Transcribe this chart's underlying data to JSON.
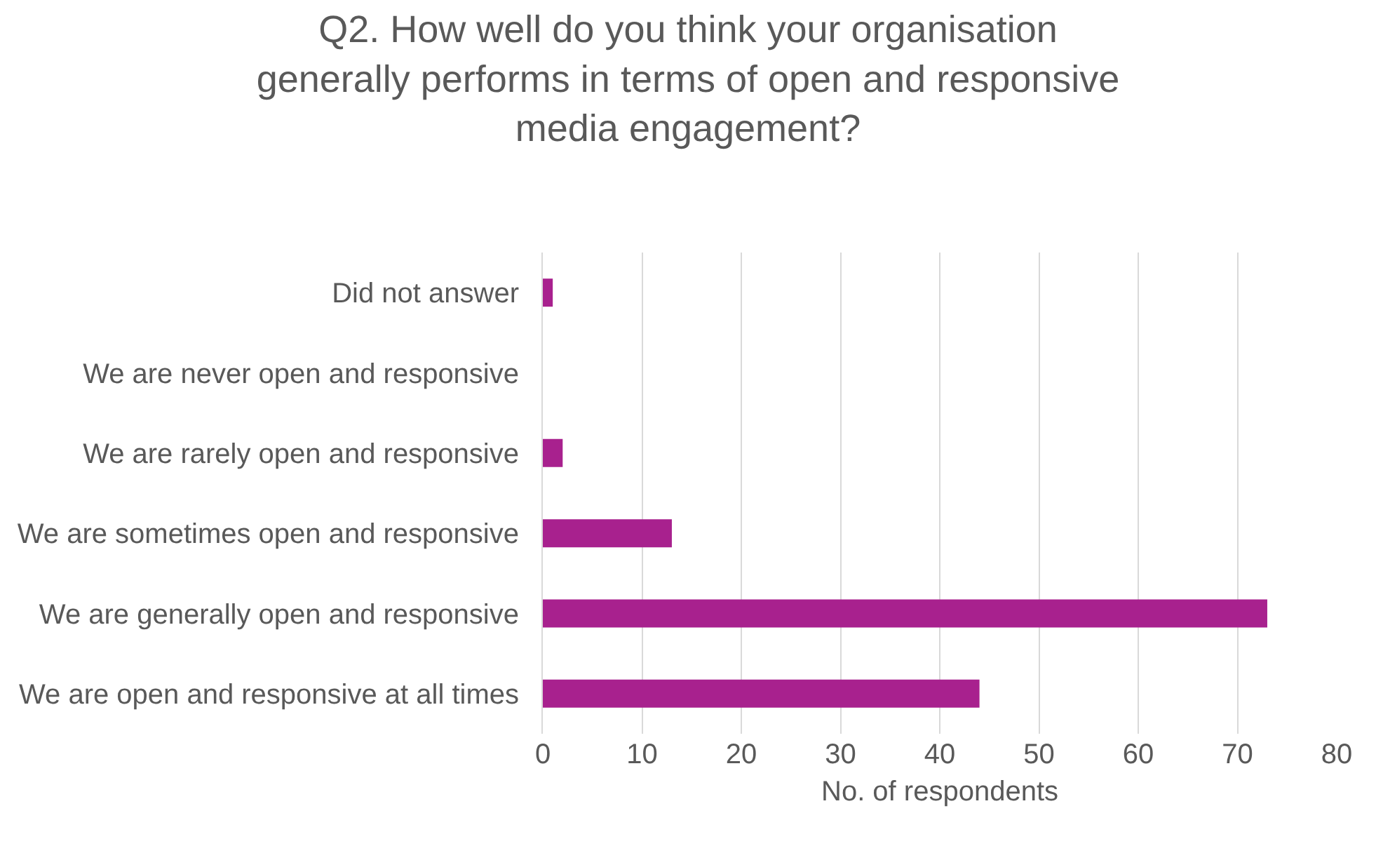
{
  "chart_data": {
    "type": "bar",
    "orientation": "horizontal",
    "title": "Q2. How well do you think your organisation generally performs in terms of open and responsive media engagement?",
    "xlabel": "No. of respondents",
    "categories": [
      "Did not answer",
      "We are never open and responsive",
      "We are rarely open and responsive",
      "We are sometimes open and responsive",
      "We are generally open and responsive",
      "We are open and responsive at all times"
    ],
    "values": [
      1,
      0,
      2,
      13,
      73,
      44
    ],
    "color": "#a8218e",
    "xlim": [
      0,
      80
    ],
    "xticks": [
      0,
      10,
      20,
      30,
      40,
      50,
      60,
      70,
      80
    ],
    "grid": "x"
  }
}
